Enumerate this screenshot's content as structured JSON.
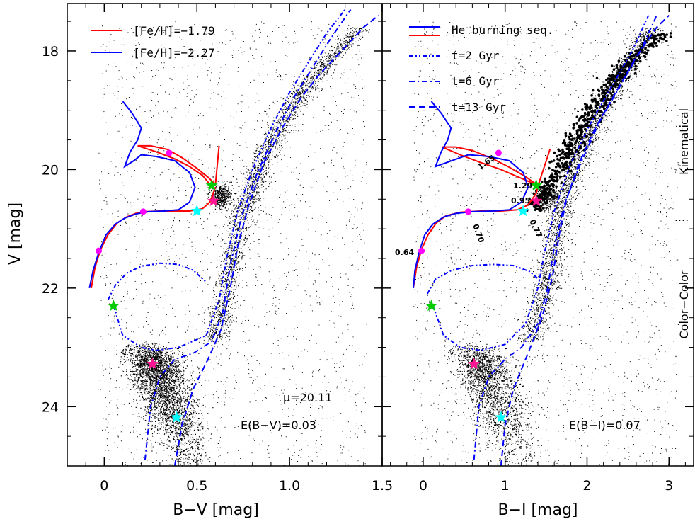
{
  "chart_data": [
    {
      "type": "scatter",
      "panel": "left",
      "xlabel": "B−V [mag]",
      "ylabel": "V [mag]",
      "xlim": [
        -0.2,
        1.5
      ],
      "ylim": [
        25.0,
        17.2
      ],
      "x_ticks": [
        "0",
        "0.5",
        "1.0",
        "1.5"
      ],
      "x_tick_values": [
        0,
        0.5,
        1.0,
        1.5
      ],
      "y_ticks": [
        "18",
        "20",
        "22",
        "24"
      ],
      "y_tick_values": [
        18,
        20,
        22,
        24
      ],
      "legend": [
        {
          "label": "[Fe/H]=−1.79",
          "color": "#ff0000",
          "style": "solid"
        },
        {
          "label": "[Fe/H]=−2.27",
          "color": "#0000ff",
          "style": "solid"
        }
      ],
      "annotations": [
        "μ=20.11",
        "E(B−V)=0.03"
      ],
      "series": [
        {
          "name": "[Fe/H]=−1.79",
          "color": "#ff0000",
          "style": "solid",
          "x": [
            -0.07,
            -0.05,
            -0.02,
            0.02,
            0.07,
            0.12,
            0.17,
            0.22,
            0.3,
            0.38,
            0.46,
            0.53,
            0.57,
            0.6
          ],
          "y": [
            22.0,
            21.65,
            21.35,
            21.1,
            20.9,
            20.8,
            20.74,
            20.71,
            20.7,
            20.7,
            20.7,
            20.66,
            20.55,
            20.3
          ]
        },
        {
          "name": "[Fe/H]=−1.79 upper",
          "color": "#ff0000",
          "style": "solid",
          "x": [
            0.18,
            0.25,
            0.34,
            0.42,
            0.5,
            0.56,
            0.6,
            0.62
          ],
          "y": [
            19.6,
            19.6,
            19.66,
            19.8,
            19.98,
            20.13,
            20.25,
            19.6
          ]
        },
        {
          "name": "[Fe/H]=−1.79 upper2",
          "color": "#ff0000",
          "style": "solid",
          "x": [
            0.18,
            0.28,
            0.38,
            0.46,
            0.53,
            0.57
          ],
          "y": [
            19.6,
            19.7,
            19.82,
            19.95,
            20.1,
            20.25
          ]
        },
        {
          "name": "[Fe/H]=−2.27",
          "color": "#0000ff",
          "style": "solid",
          "x": [
            -0.08,
            -0.06,
            -0.03,
            0.01,
            0.06,
            0.11,
            0.17,
            0.24,
            0.32,
            0.4,
            0.46,
            0.49,
            0.46,
            0.38,
            0.28,
            0.2,
            0.16,
            0.11,
            0.14,
            0.18,
            0.2,
            0.15,
            0.1
          ],
          "y": [
            22.0,
            21.7,
            21.4,
            21.1,
            20.92,
            20.82,
            20.75,
            20.71,
            20.7,
            20.68,
            20.55,
            20.3,
            20.05,
            19.85,
            19.78,
            19.75,
            19.85,
            19.95,
            19.7,
            19.5,
            19.3,
            19.05,
            18.85
          ]
        },
        {
          "name": "He burning ZAHB",
          "color": "#0000ff",
          "style": "dashdotdot",
          "x": [
            0.02,
            0.06,
            0.12,
            0.2,
            0.3,
            0.4,
            0.48,
            0.55
          ],
          "y": [
            22.2,
            21.95,
            21.75,
            21.63,
            21.58,
            21.6,
            21.7,
            21.9
          ]
        },
        {
          "name": "t=2 Gyr",
          "color": "#0000ff",
          "style": "dashdotdot",
          "x": [
            0.05,
            0.1,
            0.2,
            0.28,
            0.4,
            0.55,
            0.62,
            0.66,
            0.72,
            0.8,
            0.9,
            1.0,
            1.1,
            1.2,
            1.3
          ],
          "y": [
            22.3,
            22.8,
            23.0,
            23.05,
            23.0,
            22.8,
            22.2,
            21.5,
            20.7,
            20.0,
            19.3,
            18.7,
            18.2,
            17.7,
            17.3
          ]
        },
        {
          "name": "t=6 Gyr",
          "color": "#0000ff",
          "style": "dashdot",
          "x": [
            0.22,
            0.25,
            0.3,
            0.38,
            0.48,
            0.58,
            0.64,
            0.68,
            0.74,
            0.82,
            0.92,
            1.02,
            1.12,
            1.22,
            1.33
          ],
          "y": [
            24.9,
            24.0,
            23.5,
            23.2,
            23.1,
            22.9,
            22.4,
            21.6,
            20.8,
            20.1,
            19.4,
            18.8,
            18.3,
            17.8,
            17.3
          ]
        },
        {
          "name": "t=13 Gyr",
          "color": "#0000ff",
          "style": "dashed",
          "x": [
            0.38,
            0.42,
            0.48,
            0.56,
            0.63,
            0.68,
            0.72,
            0.78,
            0.86,
            0.96,
            1.06,
            1.16,
            1.28,
            1.4,
            1.48
          ],
          "y": [
            25.0,
            24.3,
            23.7,
            23.2,
            22.7,
            22.0,
            21.3,
            20.6,
            19.9,
            19.3,
            18.8,
            18.4,
            18.0,
            17.6,
            17.4
          ]
        }
      ],
      "markers": [
        {
          "shape": "circle",
          "color": "#ff00ff",
          "x": -0.03,
          "y": 21.37
        },
        {
          "shape": "circle",
          "color": "#ff00ff",
          "x": 0.21,
          "y": 20.71
        },
        {
          "shape": "circle",
          "color": "#ff00ff",
          "x": 0.35,
          "y": 19.72
        },
        {
          "shape": "star",
          "color": "#00cc00",
          "x": 0.58,
          "y": 20.27
        },
        {
          "shape": "star",
          "color": "#ff1493",
          "x": 0.59,
          "y": 20.53
        },
        {
          "shape": "star",
          "color": "#00ffff",
          "x": 0.5,
          "y": 20.7
        },
        {
          "shape": "star",
          "color": "#00cc00",
          "x": 0.05,
          "y": 22.3
        },
        {
          "shape": "star",
          "color": "#ff1493",
          "x": 0.26,
          "y": 23.28
        },
        {
          "shape": "star",
          "color": "#00ffff",
          "x": 0.39,
          "y": 24.18
        }
      ]
    },
    {
      "type": "scatter",
      "panel": "right",
      "xlabel": "B−I [mag]",
      "xlim": [
        -0.5,
        3.3
      ],
      "ylim": [
        25.0,
        17.2
      ],
      "x_ticks": [
        "0",
        "1",
        "2",
        "3"
      ],
      "x_tick_values": [
        0,
        1,
        2,
        3
      ],
      "legend": [
        {
          "label": "He burning seq.",
          "color": "#0000ff",
          "style": "solid"
        },
        {
          "label": "t=2 Gyr",
          "color": "#0000ff",
          "style": "dashdotdot"
        },
        {
          "label": "t=6 Gyr",
          "color": "#0000ff",
          "style": "dashdot"
        },
        {
          "label": "t=13 Gyr",
          "color": "#0000ff",
          "style": "dashed"
        }
      ],
      "annotations": [
        "E(B−I)=0.07"
      ],
      "point_labels": [
        "1.65",
        "1.29",
        "0.95",
        "0.77",
        "0.70",
        "0.64"
      ],
      "side_labels": [
        "Kinematical",
        "....",
        "Color−Color"
      ],
      "series": [
        {
          "name": "red HB",
          "color": "#ff0000",
          "style": "solid",
          "x": [
            -0.12,
            -0.08,
            -0.02,
            0.06,
            0.16,
            0.28,
            0.45,
            0.7,
            0.95,
            1.15,
            1.28,
            1.38,
            1.42
          ],
          "y": [
            22.0,
            21.65,
            21.35,
            21.1,
            20.9,
            20.78,
            20.72,
            20.7,
            20.7,
            20.68,
            20.6,
            20.4,
            20.2
          ]
        },
        {
          "name": "red HB upper",
          "color": "#ff0000",
          "style": "solid",
          "x": [
            0.23,
            0.4,
            0.6,
            0.85,
            1.05,
            1.25,
            1.38
          ],
          "y": [
            19.62,
            19.62,
            19.68,
            19.82,
            19.96,
            20.12,
            20.25
          ]
        },
        {
          "name": "red HB upper2",
          "color": "#ff0000",
          "style": "solid",
          "x": [
            0.23,
            0.45,
            0.7,
            0.95,
            1.15,
            1.32,
            1.4,
            1.55
          ],
          "y": [
            19.62,
            19.75,
            19.88,
            20.0,
            20.12,
            20.22,
            20.28,
            19.65
          ]
        },
        {
          "name": "blue HB",
          "color": "#0000ff",
          "style": "solid",
          "x": [
            -0.12,
            -0.1,
            -0.05,
            0.02,
            0.12,
            0.25,
            0.4,
            0.6,
            0.85,
            1.05,
            1.2,
            1.28,
            1.22,
            1.05,
            0.8,
            0.55,
            0.35,
            0.15,
            0.22,
            0.3,
            0.34,
            0.22,
            0.1
          ],
          "y": [
            22.0,
            21.7,
            21.4,
            21.1,
            20.92,
            20.8,
            20.74,
            20.71,
            20.7,
            20.68,
            20.55,
            20.3,
            20.05,
            19.85,
            19.78,
            19.75,
            19.85,
            19.95,
            19.7,
            19.5,
            19.3,
            19.05,
            18.85
          ]
        },
        {
          "name": "t=2 Gyr",
          "color": "#0000ff",
          "style": "dashdotdot",
          "x": [
            0.12,
            0.25,
            0.45,
            0.7,
            1.0,
            1.25,
            1.4,
            1.48,
            1.6,
            1.8,
            2.05,
            2.3,
            2.55,
            2.75
          ],
          "y": [
            22.3,
            22.8,
            23.0,
            23.05,
            22.95,
            22.6,
            22.0,
            21.4,
            20.7,
            19.9,
            19.2,
            18.6,
            18.0,
            17.4
          ]
        },
        {
          "name": "t=2 Gyr HB",
          "color": "#0000ff",
          "style": "dashdotdot",
          "x": [
            0.05,
            0.15,
            0.35,
            0.6,
            0.85,
            1.1,
            1.3,
            1.45
          ],
          "y": [
            22.1,
            21.85,
            21.7,
            21.62,
            21.6,
            21.62,
            21.72,
            21.9
          ]
        },
        {
          "name": "t=6 Gyr",
          "color": "#0000ff",
          "style": "dashdot",
          "x": [
            0.62,
            0.68,
            0.8,
            1.0,
            1.2,
            1.4,
            1.52,
            1.6,
            1.72,
            1.92,
            2.15,
            2.4,
            2.65,
            2.85
          ],
          "y": [
            24.9,
            24.0,
            23.5,
            23.2,
            23.0,
            22.6,
            22.0,
            21.3,
            20.6,
            19.9,
            19.2,
            18.6,
            18.0,
            17.4
          ]
        },
        {
          "name": "t=13 Gyr",
          "color": "#0000ff",
          "style": "dashed",
          "x": [
            0.95,
            1.0,
            1.1,
            1.28,
            1.45,
            1.58,
            1.66,
            1.75,
            1.9,
            2.1,
            2.35,
            2.6,
            2.85,
            3.0
          ],
          "y": [
            25.0,
            24.3,
            23.7,
            23.1,
            22.5,
            21.8,
            21.1,
            20.5,
            19.9,
            19.3,
            18.7,
            18.1,
            17.6,
            17.4
          ]
        }
      ],
      "markers": [
        {
          "shape": "circle",
          "color": "#ff00ff",
          "x": -0.02,
          "y": 21.37
        },
        {
          "shape": "circle",
          "color": "#ff00ff",
          "x": 0.55,
          "y": 20.71
        },
        {
          "shape": "circle",
          "color": "#ff00ff",
          "x": 0.92,
          "y": 19.72
        },
        {
          "shape": "star",
          "color": "#00cc00",
          "x": 1.38,
          "y": 20.27
        },
        {
          "shape": "star",
          "color": "#ff1493",
          "x": 1.38,
          "y": 20.53
        },
        {
          "shape": "star",
          "color": "#00ffff",
          "x": 1.22,
          "y": 20.7
        },
        {
          "shape": "star",
          "color": "#00cc00",
          "x": 0.1,
          "y": 22.3
        },
        {
          "shape": "star",
          "color": "#ff1493",
          "x": 0.62,
          "y": 23.28
        },
        {
          "shape": "star",
          "color": "#00ffff",
          "x": 0.95,
          "y": 24.18
        }
      ]
    }
  ]
}
